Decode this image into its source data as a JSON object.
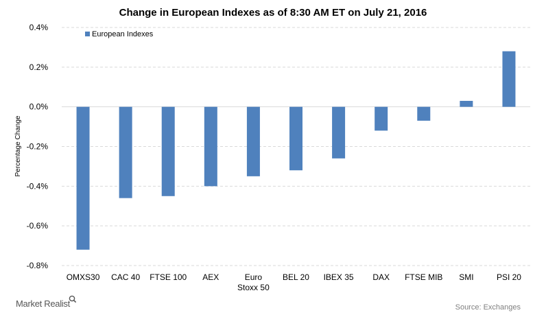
{
  "chart_data": {
    "type": "bar",
    "title": "Change in European Indexes as of 8:30 AM ET on July 21, 2016",
    "ylabel": "Percentage Change",
    "xlabel": "",
    "categories": [
      [
        "OMXS30"
      ],
      [
        "CAC 40"
      ],
      [
        "FTSE 100"
      ],
      [
        "AEX"
      ],
      [
        "Euro",
        "Stoxx 50"
      ],
      [
        "BEL 20"
      ],
      [
        "IBEX 35"
      ],
      [
        "DAX"
      ],
      [
        "FTSE MIB"
      ],
      [
        "SMI"
      ],
      [
        "PSI 20"
      ]
    ],
    "series": [
      {
        "name": "European Indexes",
        "values": [
          -0.72,
          -0.46,
          -0.45,
          -0.4,
          -0.35,
          -0.32,
          -0.26,
          -0.12,
          -0.07,
          0.03,
          0.28
        ]
      }
    ],
    "ylim": [
      -0.8,
      0.4
    ],
    "yticks": [
      0.4,
      0.2,
      0.0,
      -0.2,
      -0.4,
      -0.6,
      -0.8
    ],
    "ytick_labels": [
      "0.4%",
      "0.2%",
      "0.0%",
      "-0.2%",
      "-0.4%",
      "-0.6%",
      "-0.8%"
    ],
    "grid": true,
    "legend_position": "top-left",
    "bar_color": "#4f81bd",
    "grid_color": "#d9d9d9"
  },
  "footer": {
    "source": "Source: Exchanges",
    "brand": "Market Realist"
  }
}
